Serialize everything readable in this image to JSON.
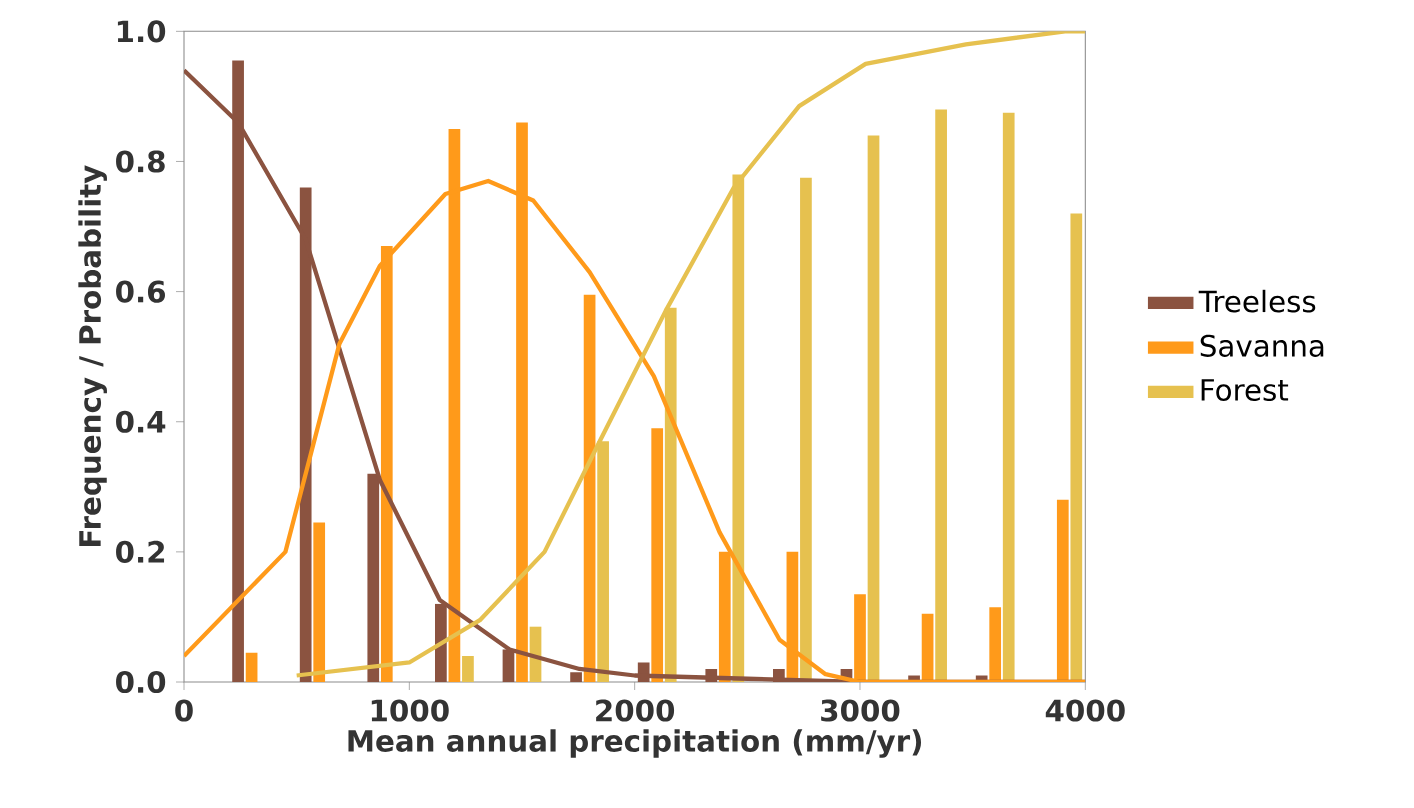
{
  "chart_data": {
    "type": "bar",
    "xlabel": "Mean annual precipitation (mm/yr)",
    "ylabel": "Frequency / Probability",
    "xlim": [
      0,
      4000
    ],
    "ylim": [
      0,
      1.0
    ],
    "xticks": [
      0,
      1000,
      2000,
      3000,
      4000
    ],
    "yticks": [
      {
        "value": 0,
        "label": "0.0"
      },
      {
        "value": 0.2,
        "label": "0.2"
      },
      {
        "value": 0.4,
        "label": "0.4"
      },
      {
        "value": 0.6,
        "label": "0.6"
      },
      {
        "value": 0.8,
        "label": "0.8"
      },
      {
        "value": 1.0,
        "label": "1.0"
      }
    ],
    "legend": "right",
    "grid": false,
    "series": [
      {
        "name": "Treeless",
        "color": "#8b5340",
        "x": [
          240,
          540,
          840,
          1140,
          1440,
          1740,
          2040,
          2340,
          2640,
          2940,
          3240,
          3540,
          3840
        ],
        "values": [
          0.955,
          0.76,
          0.32,
          0.12,
          0.05,
          0.015,
          0.03,
          0.02,
          0.02,
          0.02,
          0.01,
          0.01,
          0
        ]
      },
      {
        "name": "Savanna",
        "color": "#ff9a1a",
        "x": [
          300,
          600,
          900,
          1200,
          1500,
          1800,
          2100,
          2400,
          2700,
          3000,
          3300,
          3600,
          3900
        ],
        "values": [
          0.045,
          0.245,
          0.67,
          0.85,
          0.86,
          0.595,
          0.39,
          0.2,
          0.2,
          0.135,
          0.105,
          0.115,
          0.28
        ]
      },
      {
        "name": "Forest",
        "color": "#e6c14f",
        "x": [
          360,
          660,
          960,
          1260,
          1560,
          1860,
          2160,
          2460,
          2760,
          3060,
          3360,
          3660,
          3960
        ],
        "values": [
          0,
          0,
          0,
          0.04,
          0.085,
          0.37,
          0.575,
          0.78,
          0.775,
          0.84,
          0.88,
          0.875,
          0.72
        ]
      },
      {
        "type": "line",
        "color": "#8b5340",
        "marker": "none",
        "x": [
          0,
          240,
          540,
          870,
          1135,
          1445,
          1755,
          2000,
          2500,
          3000,
          4000
        ],
        "values": [
          0.94,
          0.86,
          0.68,
          0.31,
          0.126,
          0.05,
          0.02,
          0.01,
          0.005,
          0,
          0
        ]
      },
      {
        "type": "line",
        "color": "#ff9a1a",
        "marker": "none",
        "x": [
          0,
          450,
          690,
          870,
          1160,
          1350,
          1550,
          1800,
          2085,
          2377,
          2643,
          2847,
          3000,
          4000
        ],
        "values": [
          0.04,
          0.2,
          0.52,
          0.64,
          0.75,
          0.77,
          0.74,
          0.63,
          0.47,
          0.23,
          0.065,
          0.012,
          0,
          0
        ]
      },
      {
        "type": "line",
        "color": "#e6c14f",
        "marker": "none",
        "x": [
          500,
          1000,
          1313,
          1600,
          1845,
          2137,
          2440,
          2730,
          3025,
          3470,
          3910,
          4000
        ],
        "values": [
          0.01,
          0.03,
          0.095,
          0.2,
          0.37,
          0.57,
          0.76,
          0.885,
          0.95,
          0.98,
          1.0,
          1.0
        ]
      }
    ]
  }
}
